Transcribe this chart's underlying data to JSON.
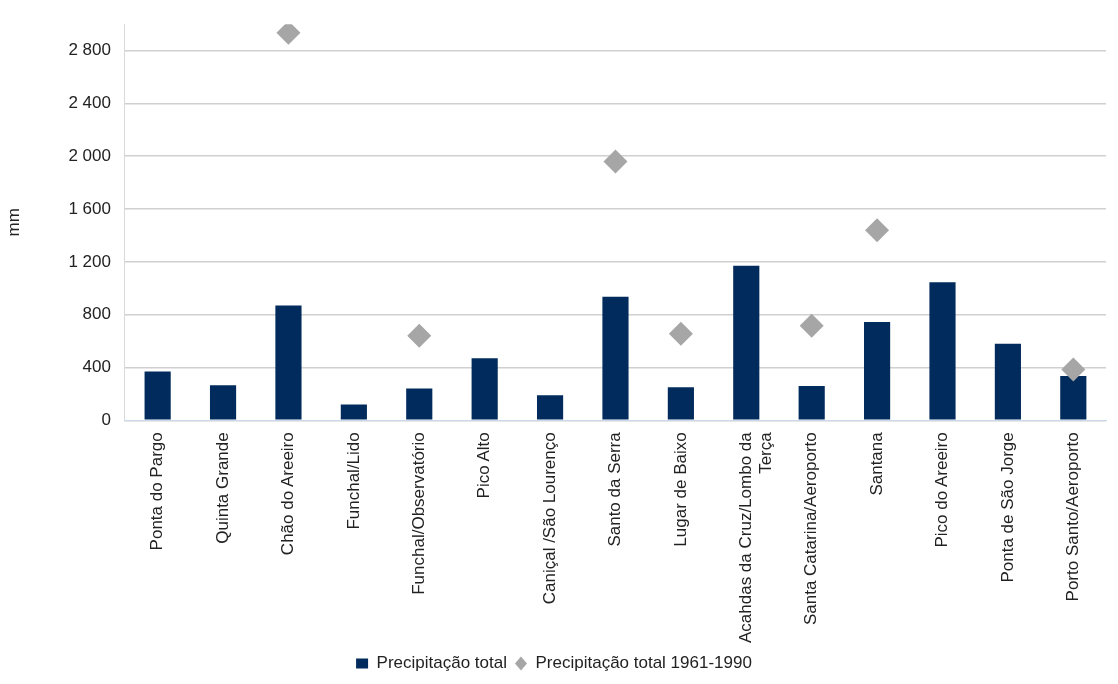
{
  "chart_data": {
    "type": "bar",
    "ylabel": "mm",
    "categories": [
      "Ponta do Pargo",
      "Quinta Grande",
      "Chão do Areeiro",
      "Funchal/Lido",
      "Funchal/Observatório",
      "Pico Alto",
      "Caniçal /São Lourenço",
      "Santo da Serra",
      "Lugar de Baixo",
      "Acahdas da Cruz/Lombo da Terça",
      "Santa Catarina/Aeroporto",
      "Santana",
      "Pico do Areeiro",
      "Ponta de São Jorge",
      "Porto Santo/Aeroporto"
    ],
    "series": [
      {
        "name": "Precipitação total",
        "color": "#002b5c",
        "values": [
          370,
          265,
          870,
          120,
          240,
          470,
          190,
          935,
          250,
          1170,
          260,
          745,
          1045,
          580,
          335
        ]
      },
      {
        "name": "Precipitação total 1961-1990",
        "type": "scatter",
        "color": "#a6a6a6",
        "marker": "diamond",
        "values": [
          null,
          null,
          2935,
          null,
          640,
          null,
          null,
          1960,
          655,
          null,
          715,
          1440,
          null,
          null,
          385
        ]
      }
    ],
    "ylim": [
      0,
      3000
    ],
    "yticks": [
      {
        "value": 0,
        "label": "0"
      },
      {
        "value": 400,
        "label": "400"
      },
      {
        "value": 800,
        "label": "800"
      },
      {
        "value": 1200,
        "label": "1 200"
      },
      {
        "value": 1600,
        "label": "1 600"
      },
      {
        "value": 2000,
        "label": "2 000"
      },
      {
        "value": 2400,
        "label": "2 400"
      },
      {
        "value": 2800,
        "label": "2 800"
      }
    ],
    "grid": "y",
    "legend": "bottom"
  }
}
